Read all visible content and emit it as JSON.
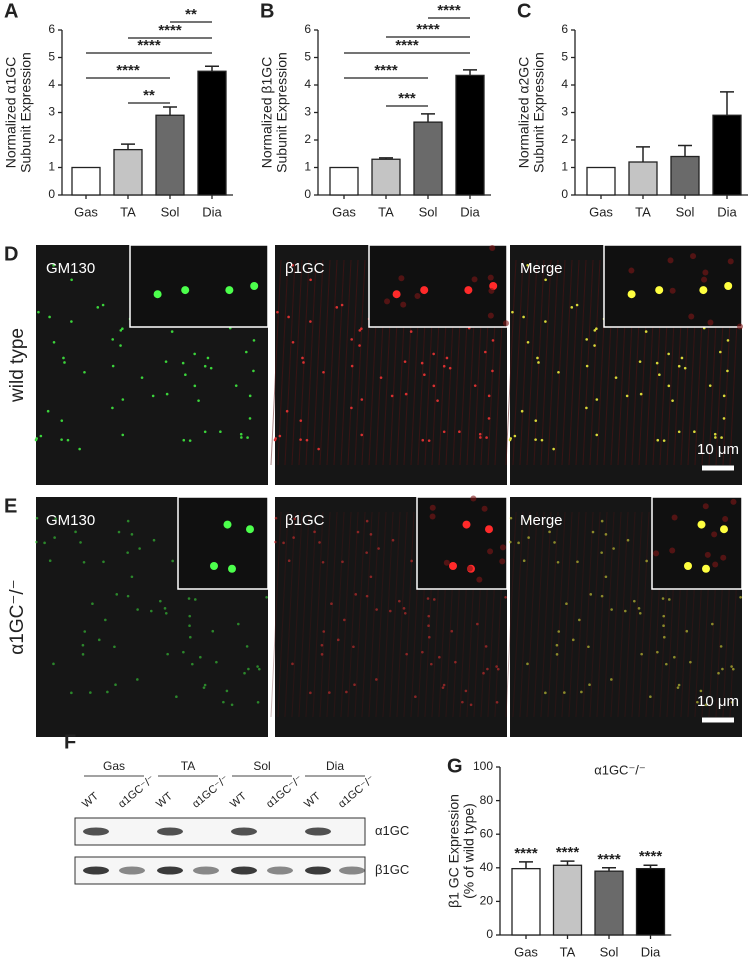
{
  "chart_data": [
    {
      "type": "bar",
      "panel": "A",
      "y_label": [
        "Normalized α1GC",
        "Subunit Expression"
      ],
      "categories": [
        "Gas",
        "TA",
        "Sol",
        "Dia"
      ],
      "values": [
        1,
        1.65,
        2.9,
        4.5
      ],
      "errors": [
        null,
        0.2,
        0.3,
        0.18
      ],
      "colors": [
        "#ffffff",
        "#c4c4c4",
        "#6a6a6a",
        "#000000"
      ],
      "ylim": [
        0,
        6
      ],
      "yticks": [
        0,
        1,
        2,
        3,
        4,
        5,
        6
      ],
      "comparisons": [
        {
          "label": "**",
          "between": [
            "Sol",
            "Dia"
          ]
        },
        {
          "label": "****",
          "between": [
            "TA",
            "Dia"
          ]
        },
        {
          "label": "****",
          "between": [
            "Gas",
            "Dia"
          ]
        },
        {
          "label": "****",
          "between": [
            "Gas",
            "Sol"
          ]
        },
        {
          "label": "**",
          "between": [
            "TA",
            "Sol"
          ]
        }
      ]
    },
    {
      "type": "bar",
      "panel": "B",
      "y_label": [
        "Normalized β1GC",
        "Subunit Expression"
      ],
      "categories": [
        "Gas",
        "TA",
        "Sol",
        "Dia"
      ],
      "values": [
        1,
        1.3,
        2.65,
        4.35
      ],
      "errors": [
        null,
        0.05,
        0.3,
        0.2
      ],
      "colors": [
        "#ffffff",
        "#c4c4c4",
        "#6a6a6a",
        "#000000"
      ],
      "ylim": [
        0,
        6
      ],
      "yticks": [
        0,
        1,
        2,
        3,
        4,
        5,
        6
      ],
      "comparisons": [
        {
          "label": "****",
          "between": [
            "Sol",
            "Dia"
          ]
        },
        {
          "label": "****",
          "between": [
            "TA",
            "Dia"
          ]
        },
        {
          "label": "****",
          "between": [
            "Gas",
            "Dia"
          ]
        },
        {
          "label": "****",
          "between": [
            "Gas",
            "Sol"
          ]
        },
        {
          "label": "***",
          "between": [
            "TA",
            "Sol"
          ]
        }
      ]
    },
    {
      "type": "bar",
      "panel": "C",
      "y_label": [
        "Normalized α2GC",
        "Subunit Expression"
      ],
      "categories": [
        "Gas",
        "TA",
        "Sol",
        "Dia"
      ],
      "values": [
        1,
        1.2,
        1.4,
        2.9
      ],
      "errors": [
        null,
        0.55,
        0.4,
        0.85
      ],
      "colors": [
        "#ffffff",
        "#c4c4c4",
        "#6a6a6a",
        "#000000"
      ],
      "ylim": [
        0,
        6
      ],
      "yticks": [
        0,
        1,
        2,
        3,
        4,
        5,
        6
      ]
    },
    {
      "type": "bar",
      "panel": "G",
      "title": "α1GC⁻/⁻",
      "y_label": [
        "β1 GC Expression",
        "(% of wild type)"
      ],
      "categories": [
        "Gas",
        "TA",
        "Sol",
        "Dia"
      ],
      "values": [
        39.5,
        41.5,
        38,
        39.5
      ],
      "errors": [
        4,
        2.5,
        2,
        2
      ],
      "annotations": [
        "****",
        "****",
        "****",
        "****"
      ],
      "colors": [
        "#ffffff",
        "#c4c4c4",
        "#6a6a6a",
        "#000000"
      ],
      "ylim": [
        0,
        100
      ],
      "yticks": [
        0,
        20,
        40,
        60,
        80,
        100
      ]
    }
  ],
  "micrographs": [
    {
      "panel": "D",
      "label": "wild type",
      "channels": [
        "GM130",
        "β1GC",
        "Merge"
      ],
      "scale_bar": "10 μm"
    },
    {
      "panel": "E",
      "label": "α1GC⁻/⁻",
      "channels": [
        "GM130",
        "β1GC",
        "Merge"
      ],
      "scale_bar": "10 μm"
    }
  ],
  "western_blot": {
    "panel": "F",
    "groups": [
      "Gas",
      "TA",
      "Sol",
      "Dia"
    ],
    "lanes": [
      "WT",
      "α1GC⁻/⁻"
    ],
    "blots": [
      "α1GC",
      "β1GC"
    ]
  }
}
